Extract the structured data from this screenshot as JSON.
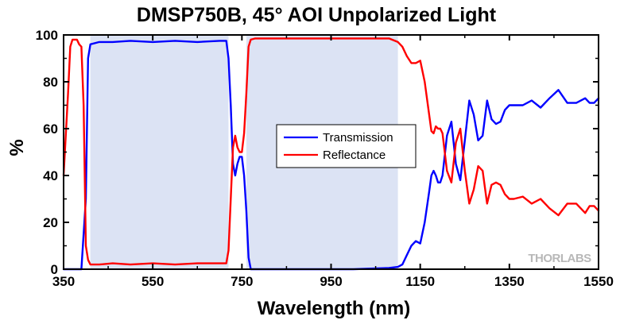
{
  "chart_data": {
    "type": "line",
    "title": "DMSP750B, 45° AOI Unpolarized Light",
    "xlabel": "Wavelength (nm)",
    "ylabel": "%",
    "xlim": [
      350,
      1550
    ],
    "ylim": [
      0,
      100
    ],
    "xticks": [
      350,
      550,
      750,
      950,
      1150,
      1350,
      1550
    ],
    "yticks": [
      0,
      20,
      40,
      60,
      80,
      100
    ],
    "grid": false,
    "legend_position": "center",
    "watermark": "THORLABS",
    "shaded_regions": [
      {
        "x": [
          410,
          720
        ],
        "color": "#dce3f4"
      },
      {
        "x": [
          760,
          1100
        ],
        "color": "#dce3f4"
      }
    ],
    "series": [
      {
        "name": "Transmission",
        "color": "#0000ff",
        "x": [
          350,
          380,
          390,
          400,
          405,
          410,
          430,
          460,
          500,
          550,
          600,
          650,
          700,
          715,
          720,
          725,
          730,
          735,
          740,
          745,
          750,
          755,
          760,
          765,
          770,
          780,
          800,
          900,
          1000,
          1080,
          1100,
          1110,
          1120,
          1130,
          1140,
          1150,
          1160,
          1170,
          1175,
          1180,
          1185,
          1190,
          1195,
          1200,
          1210,
          1220,
          1230,
          1240,
          1250,
          1260,
          1270,
          1280,
          1290,
          1300,
          1310,
          1320,
          1330,
          1340,
          1350,
          1360,
          1380,
          1400,
          1420,
          1440,
          1460,
          1480,
          1500,
          1520,
          1530,
          1540,
          1550
        ],
        "y": [
          0,
          0,
          0,
          30,
          90,
          96,
          97,
          97,
          97.5,
          97,
          97.5,
          97,
          97.5,
          97.5,
          90,
          70,
          45,
          40,
          45,
          48,
          48,
          40,
          25,
          5,
          0,
          0,
          0,
          0,
          0,
          0.5,
          1,
          2,
          6,
          10,
          12,
          11,
          20,
          33,
          40,
          42,
          40,
          37,
          37,
          40,
          57,
          63,
          45,
          38,
          55,
          72,
          66,
          55,
          57,
          72,
          64,
          62,
          63,
          68,
          70,
          70,
          70,
          72,
          69,
          73,
          76.5,
          71,
          71,
          73,
          71,
          71,
          73
        ]
      },
      {
        "name": "Reflectance",
        "color": "#ff0000",
        "x": [
          350,
          360,
          365,
          370,
          375,
          380,
          385,
          390,
          395,
          400,
          405,
          410,
          430,
          460,
          500,
          550,
          600,
          650,
          700,
          715,
          720,
          725,
          730,
          735,
          740,
          745,
          750,
          755,
          760,
          765,
          770,
          780,
          800,
          900,
          1000,
          1080,
          1100,
          1110,
          1120,
          1130,
          1140,
          1150,
          1160,
          1170,
          1175,
          1180,
          1185,
          1190,
          1195,
          1200,
          1210,
          1220,
          1230,
          1240,
          1250,
          1260,
          1270,
          1280,
          1290,
          1300,
          1310,
          1320,
          1330,
          1340,
          1350,
          1360,
          1380,
          1400,
          1420,
          1440,
          1460,
          1480,
          1500,
          1520,
          1530,
          1540,
          1550
        ],
        "y": [
          40,
          75,
          95,
          98,
          98,
          98,
          96,
          95,
          70,
          10,
          4,
          2,
          2,
          2.5,
          2,
          2.5,
          2,
          2.5,
          2.5,
          2.5,
          8,
          30,
          52,
          57,
          52,
          50,
          50,
          58,
          75,
          95,
          98,
          98.5,
          98.5,
          98.5,
          98.5,
          98.5,
          97,
          95,
          91,
          88,
          88,
          89,
          80,
          66,
          59,
          58,
          61,
          60,
          60,
          58,
          42,
          37,
          54,
          60,
          42,
          28,
          34,
          44,
          42,
          28,
          36,
          37,
          36,
          32,
          30,
          30,
          31,
          28,
          30,
          26,
          23,
          28,
          28,
          24,
          27,
          27,
          25
        ]
      }
    ]
  }
}
